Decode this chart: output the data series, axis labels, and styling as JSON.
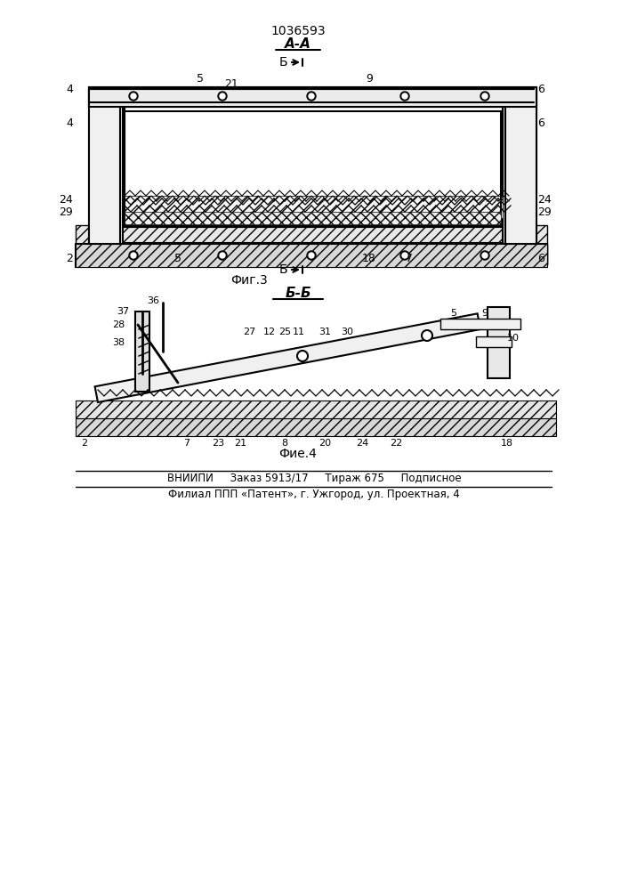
{
  "patent_number": "1036593",
  "section_aa": "A-A",
  "section_bb_label": "Б-Б",
  "fig3_label": "Фиг.3",
  "fig4_label": "Фие.4",
  "b_arrow_label": "Б",
  "footer_line1": "ВНИИПИ     Заказ 5913/17     Тираж 675     Подписное",
  "footer_line2": "Филиал ППП «Патент», г. Ужгород, ул. Проектная, 4",
  "bg_color": "#ffffff",
  "line_color": "#000000",
  "hatch_color": "#000000"
}
